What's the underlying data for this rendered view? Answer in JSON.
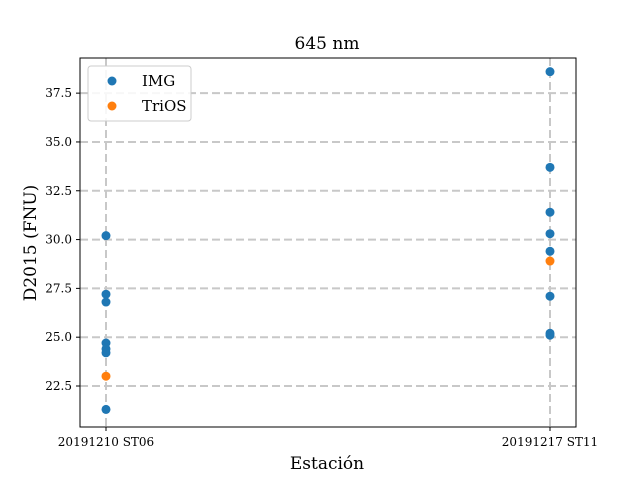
{
  "chart_data": {
    "type": "scatter",
    "title": "645 nm",
    "xlabel": "Estación",
    "ylabel": "D2015 (FNU)",
    "categories": [
      "20191210 ST06",
      "20191217 ST11"
    ],
    "ylim": [
      20.4,
      39.3
    ],
    "yticks": [
      22.5,
      25.0,
      27.5,
      30.0,
      32.5,
      35.0,
      37.5
    ],
    "ytick_labels": [
      "22.5",
      "25.0",
      "27.5",
      "30.0",
      "32.5",
      "35.0",
      "37.5"
    ],
    "grid": true,
    "legend_position": "top-left",
    "series": [
      {
        "name": "IMG",
        "color": "#1f77b4",
        "points": [
          {
            "x": "20191210 ST06",
            "y": 30.2
          },
          {
            "x": "20191210 ST06",
            "y": 27.2
          },
          {
            "x": "20191210 ST06",
            "y": 26.8
          },
          {
            "x": "20191210 ST06",
            "y": 24.7
          },
          {
            "x": "20191210 ST06",
            "y": 24.4
          },
          {
            "x": "20191210 ST06",
            "y": 24.2
          },
          {
            "x": "20191210 ST06",
            "y": 21.3
          },
          {
            "x": "20191217 ST11",
            "y": 38.6
          },
          {
            "x": "20191217 ST11",
            "y": 33.7
          },
          {
            "x": "20191217 ST11",
            "y": 31.4
          },
          {
            "x": "20191217 ST11",
            "y": 30.3
          },
          {
            "x": "20191217 ST11",
            "y": 29.4
          },
          {
            "x": "20191217 ST11",
            "y": 27.1
          },
          {
            "x": "20191217 ST11",
            "y": 25.2
          },
          {
            "x": "20191217 ST11",
            "y": 25.1
          }
        ]
      },
      {
        "name": "TriOS",
        "color": "#ff7f0e",
        "points": [
          {
            "x": "20191210 ST06",
            "y": 23.0
          },
          {
            "x": "20191217 ST11",
            "y": 28.9
          }
        ]
      }
    ]
  }
}
